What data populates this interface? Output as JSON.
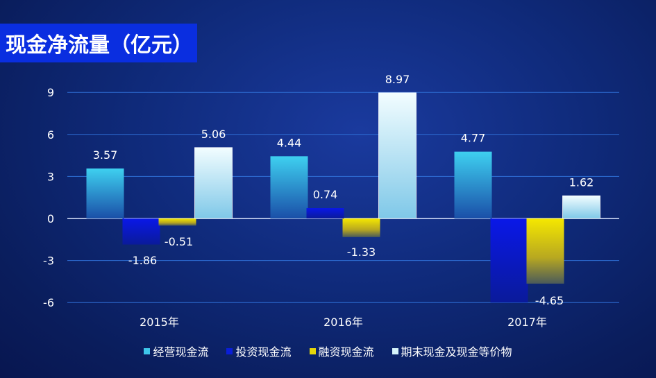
{
  "chart_data": {
    "type": "bar",
    "title": "现金净流量（亿元）",
    "categories": [
      "2015年",
      "2016年",
      "2017年"
    ],
    "series": [
      {
        "name": "经营现金流",
        "values": [
          3.57,
          4.44,
          4.77
        ],
        "color": "#3ec6ea"
      },
      {
        "name": "投资现金流",
        "values": [
          -1.86,
          0.74,
          -6.0
        ],
        "color": "#0a1ed8"
      },
      {
        "name": "融资现金流",
        "values": [
          -0.51,
          -1.33,
          -4.65
        ],
        "color": "#e6d60a"
      },
      {
        "name": "期末现金及现金等价物",
        "values": [
          5.06,
          8.97,
          1.62
        ],
        "color": "#d6f4fb"
      }
    ],
    "data_labels": [
      [
        "3.57",
        "4.44",
        "4.77"
      ],
      [
        "-1.86",
        "0.74",
        ""
      ],
      [
        "-0.51",
        "-1.33",
        "-4.65"
      ],
      [
        "5.06",
        "8.97",
        "1.62"
      ]
    ],
    "yticks": [
      "9",
      "6",
      "3",
      "0",
      "-3",
      "-6"
    ],
    "ylim": [
      -6,
      9
    ],
    "grid": true,
    "legend_position": "bottom"
  }
}
